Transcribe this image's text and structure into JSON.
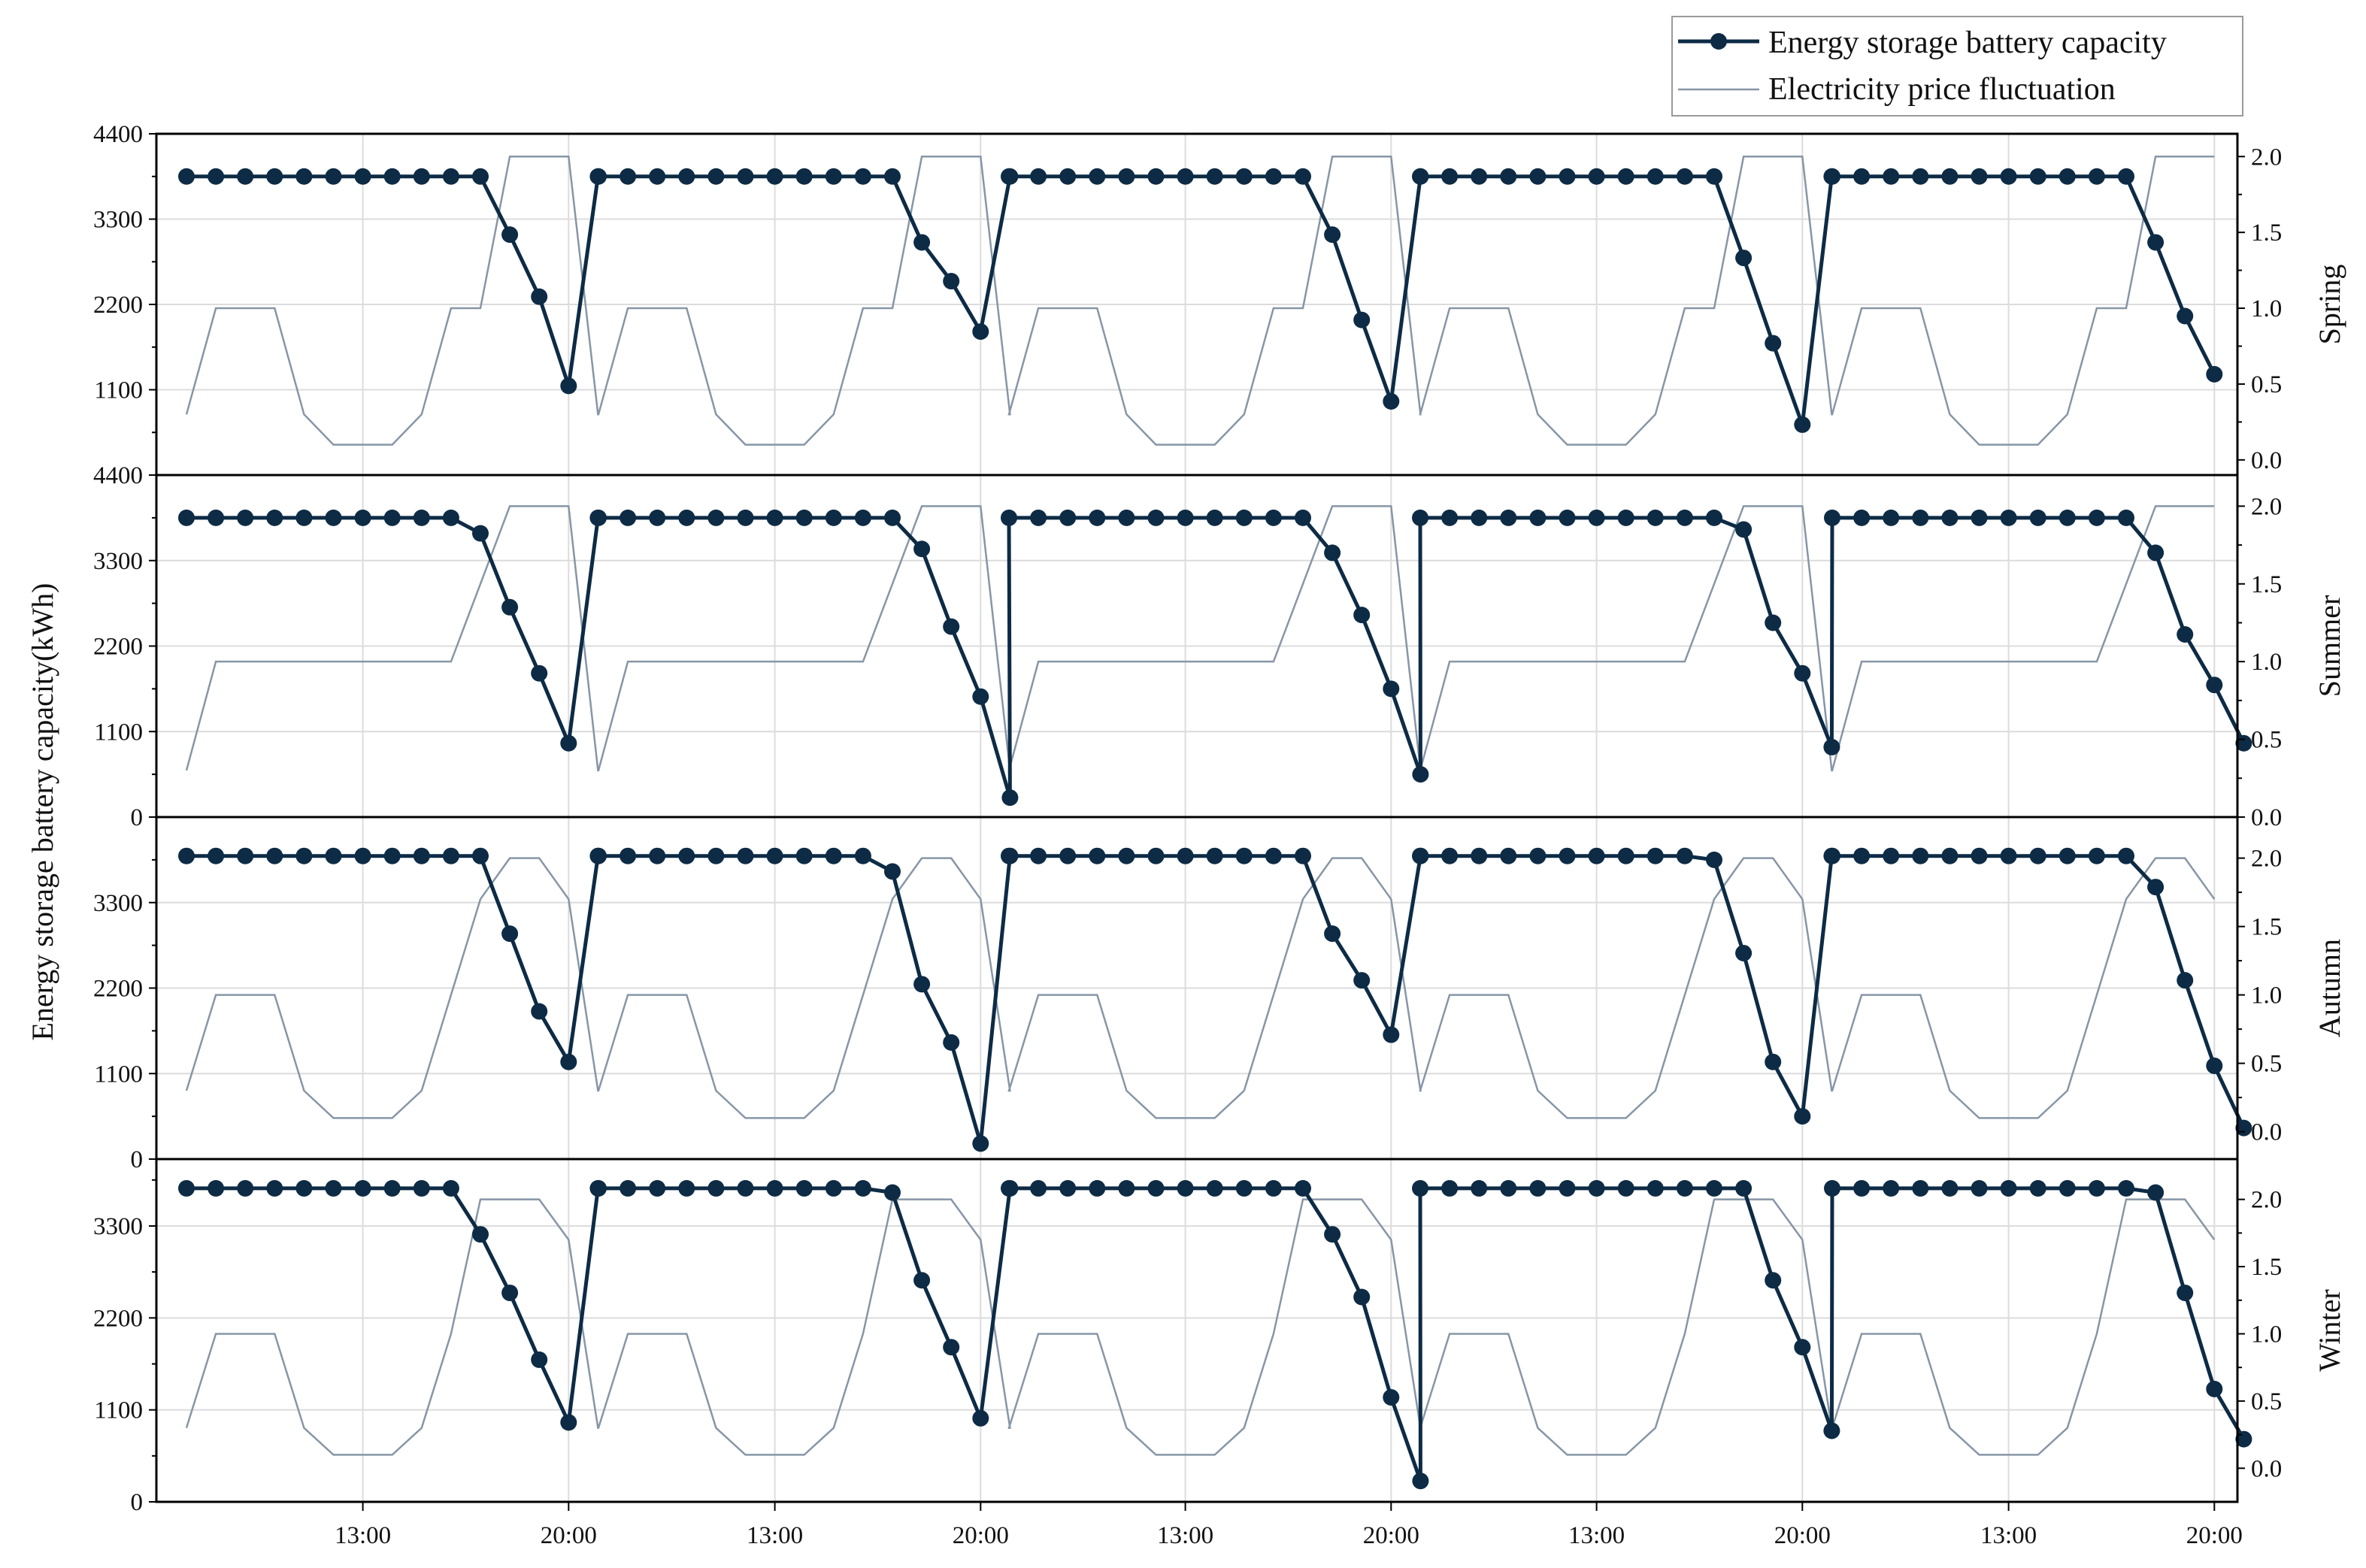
{
  "chart_data": {
    "type": "line",
    "ylabel": "Energy storage battery capacity(kWh)",
    "legend": {
      "placement": "top-right",
      "entries": [
        "Energy storage battery capacity",
        "Electricity price fluctuation"
      ]
    },
    "x_tick_labels": [
      "13:00",
      "20:00",
      "13:00",
      "20:00",
      "13:00",
      "20:00",
      "13:00",
      "20:00",
      "13:00",
      "20:00"
    ],
    "colors": {
      "battery": "#0d2b45",
      "price": "#8796a6",
      "grid": "#dcdcdc",
      "axis": "#000000"
    },
    "grid": true,
    "panels": [
      {
        "name": "Spring",
        "y_ticks": [
          "4400",
          "3300",
          "2200",
          "1100"
        ],
        "ylim": [
          0,
          4400
        ],
        "y2_ticks": [
          "2.0",
          "1.5",
          "1.0",
          "0.5",
          "0.0"
        ],
        "y2lim": [
          -0.1,
          2.15
        ],
        "battery": [
          [
            3850,
            3850,
            3850,
            3850,
            3850,
            3850,
            3850,
            3850,
            3850,
            3850,
            3850,
            3100,
            2300,
            1150,
            3850
          ],
          [
            3850,
            3850,
            3850,
            3850,
            3850,
            3850,
            3850,
            3850,
            3850,
            3850,
            3850,
            3000,
            2500,
            1850,
            3850
          ],
          [
            3850,
            3850,
            3850,
            3850,
            3850,
            3850,
            3850,
            3850,
            3850,
            3850,
            3850,
            3100,
            2000,
            950,
            3850
          ],
          [
            3850,
            3850,
            3850,
            3850,
            3850,
            3850,
            3850,
            3850,
            3850,
            3850,
            3850,
            2800,
            1700,
            650,
            3850
          ],
          [
            3850,
            3850,
            3850,
            3850,
            3850,
            3850,
            3850,
            3850,
            3850,
            3850,
            3850,
            3000,
            2050,
            1300
          ]
        ],
        "price": [
          [
            0.3,
            1.0,
            1.0,
            1.0,
            0.3,
            0.1,
            0.1,
            0.1,
            0.3,
            1.0,
            1.0,
            2.0,
            2.0,
            2.0,
            0.3
          ],
          [
            0.3,
            1.0,
            1.0,
            1.0,
            0.3,
            0.1,
            0.1,
            0.1,
            0.3,
            1.0,
            1.0,
            2.0,
            2.0,
            2.0,
            0.3
          ],
          [
            0.3,
            1.0,
            1.0,
            1.0,
            0.3,
            0.1,
            0.1,
            0.1,
            0.3,
            1.0,
            1.0,
            2.0,
            2.0,
            2.0,
            0.3
          ],
          [
            0.3,
            1.0,
            1.0,
            1.0,
            0.3,
            0.1,
            0.1,
            0.1,
            0.3,
            1.0,
            1.0,
            2.0,
            2.0,
            2.0,
            0.3
          ],
          [
            0.3,
            1.0,
            1.0,
            1.0,
            0.3,
            0.1,
            0.1,
            0.1,
            0.3,
            1.0,
            1.0,
            2.0,
            2.0,
            2.0
          ]
        ]
      },
      {
        "name": "Summer",
        "y_ticks": [
          "4400",
          "3300",
          "2200",
          "1100",
          "0"
        ],
        "ylim": [
          0,
          4400
        ],
        "y2_ticks": [
          "2.0",
          "1.5",
          "1.0",
          "0.5",
          "0.0"
        ],
        "y2lim": [
          0,
          2.2
        ],
        "battery": [
          [
            3850,
            3850,
            3850,
            3850,
            3850,
            3850,
            3850,
            3850,
            3850,
            3850,
            3650,
            2700,
            1850,
            950,
            3850
          ],
          [
            3850,
            3850,
            3850,
            3850,
            3850,
            3850,
            3850,
            3850,
            3850,
            3850,
            3850,
            3450,
            2450,
            1550,
            250
          ],
          [
            3850,
            3850,
            3850,
            3850,
            3850,
            3850,
            3850,
            3850,
            3850,
            3850,
            3850,
            3400,
            2600,
            1650,
            550
          ],
          [
            3850,
            3850,
            3850,
            3850,
            3850,
            3850,
            3850,
            3850,
            3850,
            3850,
            3850,
            3700,
            2500,
            1850,
            900
          ],
          [
            3850,
            3850,
            3850,
            3850,
            3850,
            3850,
            3850,
            3850,
            3850,
            3850,
            3850,
            3400,
            2350,
            1700,
            950
          ]
        ],
        "price": [
          [
            0.3,
            1.0,
            1.0,
            1.0,
            1.0,
            1.0,
            1.0,
            1.0,
            1.0,
            1.0,
            1.5,
            2.0,
            2.0,
            2.0,
            0.3
          ],
          [
            0.3,
            1.0,
            1.0,
            1.0,
            1.0,
            1.0,
            1.0,
            1.0,
            1.0,
            1.0,
            1.5,
            2.0,
            2.0,
            2.0,
            0.3
          ],
          [
            0.3,
            1.0,
            1.0,
            1.0,
            1.0,
            1.0,
            1.0,
            1.0,
            1.0,
            1.0,
            1.5,
            2.0,
            2.0,
            2.0,
            0.3
          ],
          [
            0.3,
            1.0,
            1.0,
            1.0,
            1.0,
            1.0,
            1.0,
            1.0,
            1.0,
            1.0,
            1.5,
            2.0,
            2.0,
            2.0,
            0.3
          ],
          [
            0.3,
            1.0,
            1.0,
            1.0,
            1.0,
            1.0,
            1.0,
            1.0,
            1.0,
            1.0,
            1.5,
            2.0,
            2.0,
            2.0
          ]
        ]
      },
      {
        "name": "Autumn",
        "y_ticks": [
          "3300",
          "2200",
          "1100",
          "0"
        ],
        "ylim": [
          0,
          4400
        ],
        "y2_ticks": [
          "2.0",
          "1.5",
          "1.0",
          "0.5",
          "0.0"
        ],
        "y2lim": [
          -0.2,
          2.3
        ],
        "battery": [
          [
            3900,
            3900,
            3900,
            3900,
            3900,
            3900,
            3900,
            3900,
            3900,
            3900,
            3900,
            2900,
            1900,
            1250,
            3900
          ],
          [
            3900,
            3900,
            3900,
            3900,
            3900,
            3900,
            3900,
            3900,
            3900,
            3900,
            3700,
            2250,
            1500,
            200,
            3900
          ],
          [
            3900,
            3900,
            3900,
            3900,
            3900,
            3900,
            3900,
            3900,
            3900,
            3900,
            3900,
            2900,
            2300,
            1600,
            3900
          ],
          [
            3900,
            3900,
            3900,
            3900,
            3900,
            3900,
            3900,
            3900,
            3900,
            3900,
            3850,
            2650,
            1250,
            550,
            3900
          ],
          [
            3900,
            3900,
            3900,
            3900,
            3900,
            3900,
            3900,
            3900,
            3900,
            3900,
            3900,
            3500,
            2300,
            1200,
            400
          ]
        ],
        "price": [
          [
            0.3,
            1.0,
            1.0,
            1.0,
            0.3,
            0.1,
            0.1,
            0.1,
            0.3,
            1.0,
            1.7,
            2.0,
            2.0,
            1.7,
            0.3
          ],
          [
            0.3,
            1.0,
            1.0,
            1.0,
            0.3,
            0.1,
            0.1,
            0.1,
            0.3,
            1.0,
            1.7,
            2.0,
            2.0,
            1.7,
            0.3
          ],
          [
            0.3,
            1.0,
            1.0,
            1.0,
            0.3,
            0.1,
            0.1,
            0.1,
            0.3,
            1.0,
            1.7,
            2.0,
            2.0,
            1.7,
            0.3
          ],
          [
            0.3,
            1.0,
            1.0,
            1.0,
            0.3,
            0.1,
            0.1,
            0.1,
            0.3,
            1.0,
            1.7,
            2.0,
            2.0,
            1.7,
            0.3
          ],
          [
            0.3,
            1.0,
            1.0,
            1.0,
            0.3,
            0.1,
            0.1,
            0.1,
            0.3,
            1.0,
            1.7,
            2.0,
            2.0,
            1.7
          ]
        ]
      },
      {
        "name": "Winter",
        "y_ticks": [
          "3300",
          "2200",
          "1100",
          "0"
        ],
        "ylim": [
          0,
          4100
        ],
        "y2_ticks": [
          "2.0",
          "1.5",
          "1.0",
          "0.5",
          "0.0"
        ],
        "y2lim": [
          -0.25,
          2.3
        ],
        "battery": [
          [
            3750,
            3750,
            3750,
            3750,
            3750,
            3750,
            3750,
            3750,
            3750,
            3750,
            3200,
            2500,
            1700,
            950,
            3750
          ],
          [
            3750,
            3750,
            3750,
            3750,
            3750,
            3750,
            3750,
            3750,
            3750,
            3750,
            3700,
            2650,
            1850,
            1000,
            3750
          ],
          [
            3750,
            3750,
            3750,
            3750,
            3750,
            3750,
            3750,
            3750,
            3750,
            3750,
            3750,
            3200,
            2450,
            1250,
            250
          ],
          [
            3750,
            3750,
            3750,
            3750,
            3750,
            3750,
            3750,
            3750,
            3750,
            3750,
            3750,
            3750,
            2650,
            1850,
            850
          ],
          [
            3750,
            3750,
            3750,
            3750,
            3750,
            3750,
            3750,
            3750,
            3750,
            3750,
            3750,
            3700,
            2500,
            1350,
            750
          ]
        ],
        "price": [
          [
            0.3,
            1.0,
            1.0,
            1.0,
            0.3,
            0.1,
            0.1,
            0.1,
            0.3,
            1.0,
            2.0,
            2.0,
            2.0,
            1.7,
            0.3
          ],
          [
            0.3,
            1.0,
            1.0,
            1.0,
            0.3,
            0.1,
            0.1,
            0.1,
            0.3,
            1.0,
            2.0,
            2.0,
            2.0,
            1.7,
            0.3
          ],
          [
            0.3,
            1.0,
            1.0,
            1.0,
            0.3,
            0.1,
            0.1,
            0.1,
            0.3,
            1.0,
            2.0,
            2.0,
            2.0,
            1.7,
            0.3
          ],
          [
            0.3,
            1.0,
            1.0,
            1.0,
            0.3,
            0.1,
            0.1,
            0.1,
            0.3,
            1.0,
            2.0,
            2.0,
            2.0,
            1.7,
            0.3
          ],
          [
            0.3,
            1.0,
            1.0,
            1.0,
            0.3,
            0.1,
            0.1,
            0.1,
            0.3,
            1.0,
            2.0,
            2.0,
            2.0,
            1.7
          ]
        ]
      }
    ]
  }
}
